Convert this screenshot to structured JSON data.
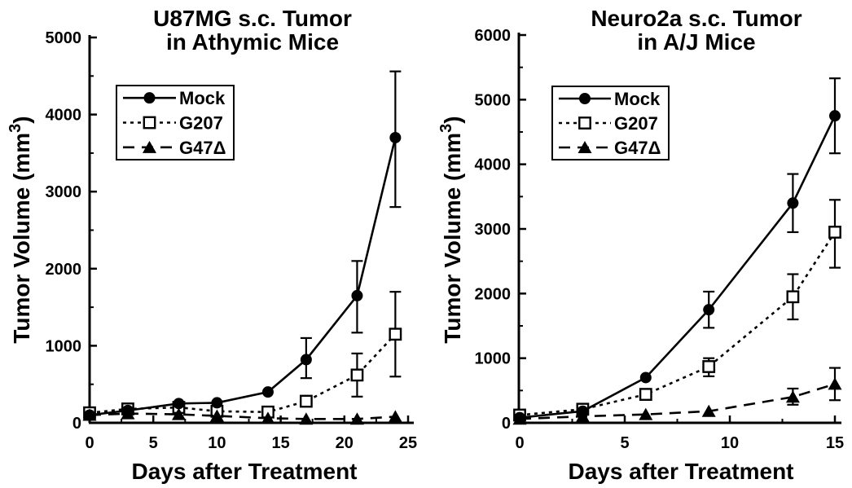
{
  "figure": {
    "background": "#ffffff",
    "ink": "#000000"
  },
  "chart_data": [
    {
      "type": "line",
      "title_lines": [
        "U87MG s.c. Tumor",
        "in Athymic Mice"
      ],
      "xlabel": "Days after Treatment",
      "ylabel": "Tumor Volume (mm³)",
      "xlim": [
        0,
        25
      ],
      "ylim": [
        0,
        5000
      ],
      "xticks": [
        0,
        5,
        10,
        15,
        20,
        25
      ],
      "yticks": [
        0,
        1000,
        2000,
        3000,
        4000,
        5000
      ],
      "y_minor_step": 500,
      "x_minor_step": 2.5,
      "grid": false,
      "legend_position": "upper-left",
      "legend_entries": [
        "Mock",
        "G207",
        "G47Δ"
      ],
      "x": [
        0,
        3,
        7,
        10,
        14,
        17,
        21,
        24
      ],
      "series": [
        {
          "name": "Mock",
          "marker": "filled-circle",
          "line_style": "solid",
          "values": [
            100,
            160,
            250,
            260,
            400,
            820,
            1650,
            3700
          ],
          "err": [
            null,
            null,
            null,
            null,
            null,
            [
              580,
              1100
            ],
            [
              1170,
              2100
            ],
            [
              2800,
              4560
            ]
          ]
        },
        {
          "name": "G207",
          "marker": "open-square",
          "line_style": "dotted",
          "values": [
            130,
            180,
            200,
            150,
            140,
            280,
            620,
            1150
          ],
          "err": [
            null,
            null,
            null,
            null,
            null,
            null,
            [
              340,
              900
            ],
            [
              600,
              1700
            ]
          ]
        },
        {
          "name": "G47Δ",
          "marker": "filled-triangle",
          "line_style": "dashed",
          "values": [
            100,
            120,
            110,
            90,
            60,
            50,
            50,
            80
          ],
          "err": [
            null,
            null,
            null,
            null,
            null,
            null,
            null,
            null
          ]
        }
      ]
    },
    {
      "type": "line",
      "title_lines": [
        "Neuro2a s.c. Tumor",
        "in A/J Mice"
      ],
      "xlabel": "Days after Treatment",
      "ylabel": "Tumor Volume (mm³)",
      "xlim": [
        0,
        15
      ],
      "ylim": [
        0,
        6000
      ],
      "xticks": [
        0,
        5,
        10,
        15
      ],
      "yticks": [
        0,
        1000,
        2000,
        3000,
        4000,
        5000,
        6000
      ],
      "y_minor_step": 500,
      "x_minor_step": 2.5,
      "grid": false,
      "legend_position": "upper-left",
      "legend_entries": [
        "Mock",
        "G207",
        "G47Δ"
      ],
      "x": [
        0,
        3,
        6,
        9,
        13,
        15
      ],
      "series": [
        {
          "name": "Mock",
          "marker": "filled-circle",
          "line_style": "solid",
          "values": [
            80,
            180,
            700,
            1750,
            3400,
            4750
          ],
          "err": [
            null,
            null,
            null,
            [
              1470,
              2030
            ],
            [
              2950,
              3850
            ],
            [
              4170,
              5330
            ]
          ]
        },
        {
          "name": "G207",
          "marker": "open-square",
          "line_style": "dotted",
          "values": [
            120,
            210,
            440,
            870,
            1950,
            2950
          ],
          "err": [
            null,
            null,
            null,
            [
              720,
              1000
            ],
            [
              1600,
              2300
            ],
            [
              2400,
              3450
            ]
          ]
        },
        {
          "name": "G47Δ",
          "marker": "filled-triangle",
          "line_style": "dashed",
          "values": [
            60,
            100,
            130,
            180,
            400,
            600
          ],
          "err": [
            null,
            null,
            null,
            null,
            [
              280,
              530
            ],
            [
              350,
              850
            ]
          ]
        }
      ]
    }
  ]
}
